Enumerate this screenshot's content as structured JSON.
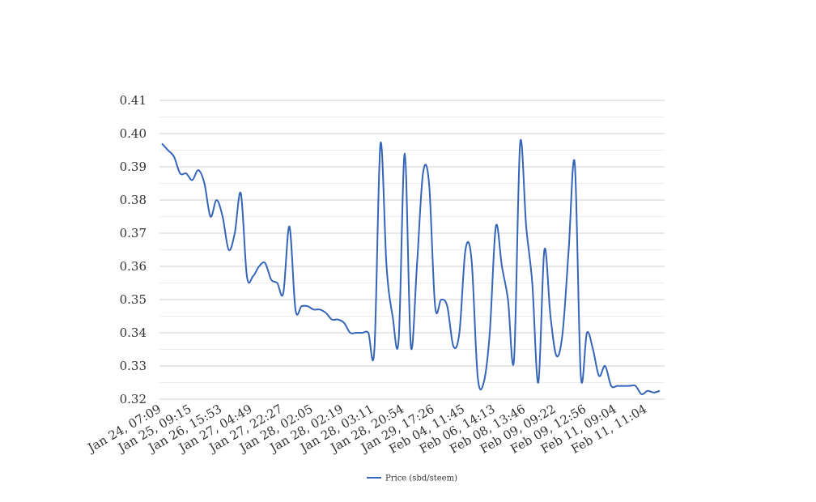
{
  "chart_data": {
    "type": "line",
    "categories": [
      "Jan 24, 07:09",
      null,
      null,
      null,
      null,
      "Jan 25, 09:15",
      null,
      null,
      null,
      null,
      "Jan 26, 15:53",
      null,
      null,
      null,
      null,
      "Jan 27, 04:49",
      null,
      null,
      null,
      null,
      "Jan 27, 22:27",
      null,
      null,
      null,
      null,
      "Jan 28, 02:05",
      null,
      null,
      null,
      null,
      "Jan 28, 02:19",
      null,
      null,
      null,
      null,
      "Jan 28, 03:11",
      null,
      null,
      null,
      null,
      "Jan 28, 20:54",
      null,
      null,
      null,
      null,
      "Jan 29, 17:26",
      null,
      null,
      null,
      null,
      "Feb 04, 11:45",
      null,
      null,
      null,
      null,
      "Feb 06, 14:13",
      null,
      null,
      null,
      null,
      "Feb 08, 13:46",
      null,
      null,
      null,
      null,
      "Feb 09, 09:22",
      null,
      null,
      null,
      null,
      "Feb 09, 12:56",
      null,
      null,
      null,
      null,
      "Feb 11, 09:04",
      null,
      null,
      null,
      null,
      "Feb 11, 11:04",
      null,
      null
    ],
    "series": [
      {
        "name": "Price (sbd/steem)",
        "color": "#3565b8",
        "values": [
          0.397,
          0.395,
          0.393,
          0.388,
          0.388,
          0.386,
          0.389,
          0.385,
          0.375,
          0.38,
          0.375,
          0.365,
          0.37,
          0.382,
          0.357,
          0.357,
          0.36,
          0.361,
          0.356,
          0.355,
          0.352,
          0.372,
          0.347,
          0.348,
          0.348,
          0.347,
          0.347,
          0.346,
          0.344,
          0.344,
          0.343,
          0.34,
          0.34,
          0.34,
          0.34,
          0.335,
          0.397,
          0.36,
          0.345,
          0.338,
          0.394,
          0.336,
          0.36,
          0.388,
          0.385,
          0.348,
          0.35,
          0.348,
          0.336,
          0.34,
          0.365,
          0.362,
          0.327,
          0.325,
          0.34,
          0.372,
          0.36,
          0.35,
          0.332,
          0.397,
          0.372,
          0.355,
          0.325,
          0.365,
          0.345,
          0.333,
          0.34,
          0.365,
          0.391,
          0.327,
          0.34,
          0.335,
          0.327,
          0.33,
          0.324,
          0.324,
          0.324,
          0.324,
          0.324,
          0.3215,
          0.3225,
          0.322,
          0.3225
        ]
      }
    ],
    "ylim": [
      0.32,
      0.41
    ],
    "yticks": [
      0.32,
      0.33,
      0.34,
      0.35,
      0.36,
      0.37,
      0.38,
      0.39,
      {
        "value": 0.4,
        "label": "0.40"
      },
      0.41
    ],
    "grid": true,
    "minor_grid": true,
    "legend": "bottom"
  }
}
